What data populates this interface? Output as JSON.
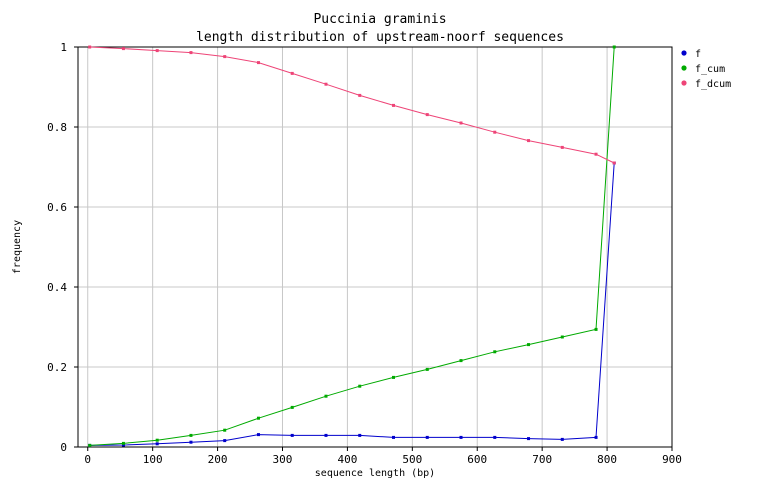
{
  "chart_data": {
    "type": "line",
    "title": "Puccinia graminis",
    "subtitle": "length distribution of upstream-noorf sequences",
    "xlabel": "sequence length (bp)",
    "ylabel": "frequency",
    "xlim": [
      -15,
      900
    ],
    "ylim": [
      0,
      1
    ],
    "xticks": [
      0,
      100,
      200,
      300,
      400,
      500,
      600,
      700,
      800,
      900
    ],
    "yticks": [
      0,
      0.2,
      0.4,
      0.6,
      0.8,
      1
    ],
    "ytick_labels": [
      "0",
      "0.2",
      "0.4",
      "0.6",
      "0.8",
      "1"
    ],
    "grid": true,
    "legend_position": "top-right",
    "x": [
      3,
      55,
      107,
      159,
      211,
      263,
      315,
      367,
      419,
      471,
      523,
      575,
      627,
      679,
      731,
      783,
      811
    ],
    "series": [
      {
        "name": "f",
        "color": "#0000cc",
        "values": [
          0.004,
          0.005,
          0.008,
          0.012,
          0.016,
          0.031,
          0.029,
          0.029,
          0.029,
          0.024,
          0.024,
          0.024,
          0.024,
          0.021,
          0.019,
          0.024,
          0.71
        ]
      },
      {
        "name": "f_cum",
        "color": "#00aa00",
        "values": [
          0.004,
          0.009,
          0.017,
          0.029,
          0.042,
          0.072,
          0.099,
          0.127,
          0.152,
          0.174,
          0.194,
          0.216,
          0.238,
          0.256,
          0.275,
          0.294,
          1.0
        ]
      },
      {
        "name": "f_dcum",
        "color": "#ee4477",
        "values": [
          1.0,
          0.996,
          0.991,
          0.986,
          0.976,
          0.961,
          0.934,
          0.907,
          0.879,
          0.854,
          0.831,
          0.81,
          0.787,
          0.766,
          0.749,
          0.732,
          0.71
        ]
      }
    ]
  }
}
